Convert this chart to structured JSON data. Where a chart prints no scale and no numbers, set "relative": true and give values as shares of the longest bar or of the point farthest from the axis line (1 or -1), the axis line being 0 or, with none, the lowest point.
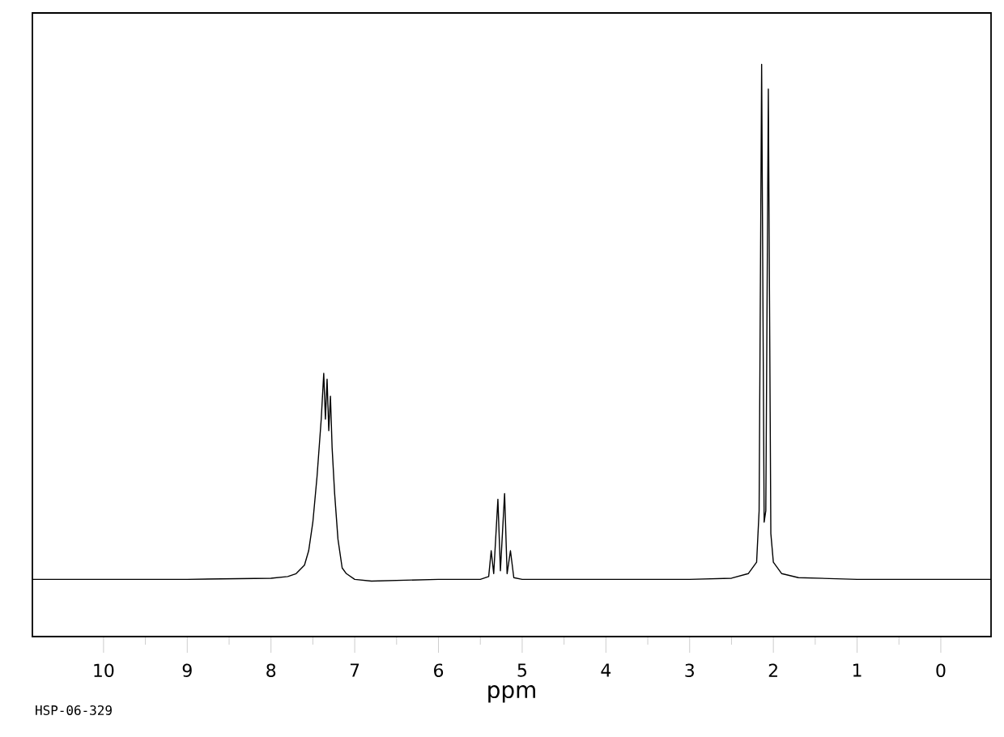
{
  "chart_data": {
    "type": "line",
    "relative": true,
    "xlabel": "ppm",
    "annotations": [
      "HSP-06-329"
    ],
    "color": "#000000",
    "xlim": [
      10.85,
      -0.6
    ],
    "xticks": [
      10,
      9,
      8,
      7,
      6,
      5,
      4,
      3,
      2,
      1,
      0
    ],
    "x": [
      10.85,
      9.0,
      8.0,
      7.8,
      7.7,
      7.6,
      7.55,
      7.5,
      7.45,
      7.4,
      7.37,
      7.35,
      7.33,
      7.31,
      7.29,
      7.27,
      7.24,
      7.2,
      7.17,
      7.15,
      7.1,
      7.0,
      6.8,
      6.0,
      5.5,
      5.4,
      5.37,
      5.34,
      5.29,
      5.26,
      5.21,
      5.18,
      5.14,
      5.1,
      5.0,
      4.0,
      3.0,
      2.5,
      2.3,
      2.2,
      2.17,
      2.14,
      2.11,
      2.09,
      2.06,
      2.03,
      2.0,
      1.9,
      1.7,
      1.0,
      0.0,
      -0.6
    ],
    "values": [
      0.1,
      0.1,
      0.102,
      0.105,
      0.11,
      0.125,
      0.15,
      0.2,
      0.28,
      0.38,
      0.46,
      0.38,
      0.45,
      0.36,
      0.42,
      0.33,
      0.25,
      0.17,
      0.14,
      0.12,
      0.11,
      0.1,
      0.097,
      0.1,
      0.1,
      0.105,
      0.15,
      0.11,
      0.24,
      0.115,
      0.25,
      0.11,
      0.15,
      0.103,
      0.1,
      0.1,
      0.1,
      0.102,
      0.11,
      0.13,
      0.22,
      1.0,
      0.2,
      0.22,
      0.957,
      0.18,
      0.13,
      0.11,
      0.103,
      0.1,
      0.1,
      0.1
    ]
  }
}
